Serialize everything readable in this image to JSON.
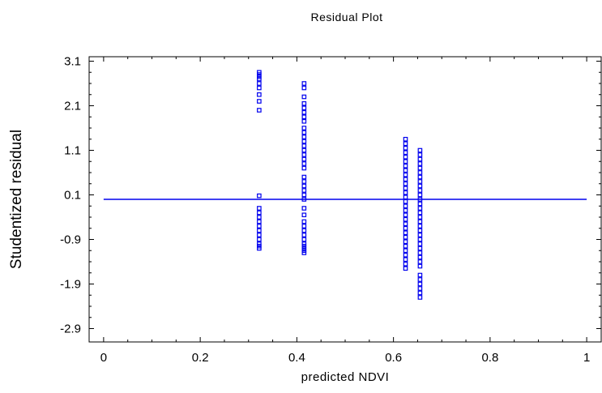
{
  "chart_data": {
    "type": "scatter",
    "title": "Residual Plot",
    "xlabel": "predicted NDVI",
    "ylabel": "Studentized residual",
    "xlim": [
      -0.03,
      1.03
    ],
    "ylim": [
      -3.2,
      3.2
    ],
    "x_ticks": [
      0,
      0.2,
      0.4,
      0.6,
      0.8,
      1
    ],
    "x_tick_labels": [
      "0",
      "0.2",
      "0.4",
      "0.6",
      "0.8",
      "1"
    ],
    "y_ticks": [
      3.1,
      2.1,
      1.1,
      0.1,
      -0.9,
      -1.9,
      -2.9
    ],
    "y_tick_labels": [
      "3.1",
      "2.1",
      "1.1",
      "0.1",
      "-0.9",
      "-1.9",
      "-2.9"
    ],
    "reference_line_y": 0,
    "colors": {
      "points": "#0000ee",
      "line": "#0000ee",
      "frame": "#000000"
    },
    "series": [
      {
        "x_groups": [
          {
            "x": 0.322,
            "y": [
              2.85,
              2.8,
              2.75,
              2.7,
              2.6,
              2.5,
              2.35,
              2.2,
              2.0,
              0.08,
              -0.2,
              -0.3,
              -0.4,
              -0.5,
              -0.6,
              -0.7,
              -0.8,
              -0.9,
              -1.0,
              -1.05,
              -1.1
            ]
          },
          {
            "x": 0.415,
            "y": [
              2.6,
              2.5,
              2.3,
              2.15,
              2.05,
              1.95,
              1.85,
              1.75,
              1.6,
              1.5,
              1.4,
              1.3,
              1.2,
              1.1,
              1.0,
              0.9,
              0.8,
              0.7,
              0.5,
              0.4,
              0.3,
              0.2,
              0.1,
              0.0,
              -0.2,
              -0.35,
              -0.5,
              -0.6,
              -0.7,
              -0.8,
              -0.9,
              -1.0,
              -1.05,
              -1.1,
              -1.15,
              -1.2
            ]
          },
          {
            "x": 0.625,
            "y": [
              1.35,
              1.25,
              1.15,
              1.05,
              0.95,
              0.85,
              0.75,
              0.65,
              0.55,
              0.45,
              0.35,
              0.25,
              0.15,
              0.05,
              -0.05,
              -0.15,
              -0.25,
              -0.35,
              -0.45,
              -0.55,
              -0.65,
              -0.75,
              -0.85,
              -0.95,
              -1.05,
              -1.15,
              -1.25,
              -1.35,
              -1.45,
              -1.55
            ]
          },
          {
            "x": 0.655,
            "y": [
              1.1,
              1.0,
              0.9,
              0.8,
              0.7,
              0.6,
              0.5,
              0.4,
              0.3,
              0.2,
              0.1,
              0.0,
              -0.1,
              -0.2,
              -0.3,
              -0.4,
              -0.5,
              -0.6,
              -0.7,
              -0.8,
              -0.9,
              -1.0,
              -1.1,
              -1.2,
              -1.3,
              -1.4,
              -1.5,
              -1.7,
              -1.8,
              -1.9,
              -2.0,
              -2.1,
              -2.2
            ]
          }
        ]
      }
    ]
  }
}
